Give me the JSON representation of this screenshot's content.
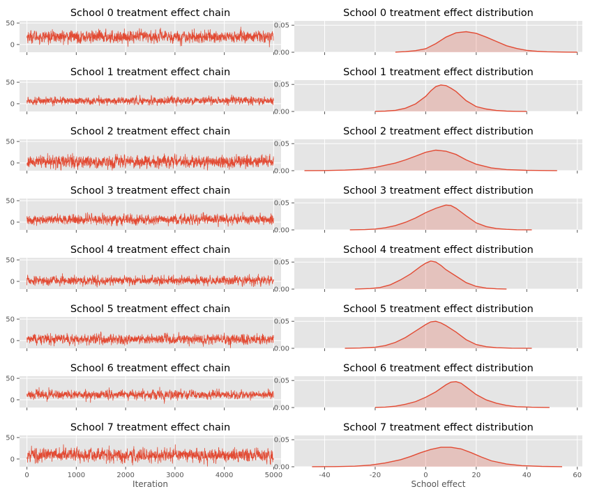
{
  "colors": {
    "accent": "#e24a33",
    "axes_bg": "#e5e5e5",
    "grid": "#ffffff",
    "tick": "#555555"
  },
  "chart_data": [
    {
      "type": "line",
      "layout_role": "chain",
      "title": "School 0 treatment effect chain",
      "xlabel": "",
      "ylabel": "",
      "xlim": [
        -150,
        5150
      ],
      "ylim": [
        -18,
        55
      ],
      "xticks": [
        0,
        1000,
        2000,
        3000,
        4000,
        5000
      ],
      "yticks": [
        0,
        50
      ],
      "grid": true,
      "trace": {
        "n": 5000,
        "mean": 18,
        "sd": 10
      }
    },
    {
      "type": "area",
      "layout_role": "density",
      "title": "School 0 treatment effect distribution",
      "xlabel": "",
      "ylabel": "",
      "xlim": [
        -52,
        62
      ],
      "ylim": [
        0,
        0.058
      ],
      "xticks": [
        -40,
        -20,
        0,
        20,
        40,
        60
      ],
      "yticks": [
        0,
        0.05
      ],
      "ytick_labels": [
        "0.00",
        "0.05"
      ],
      "grid": true,
      "x": [
        -12,
        -8,
        -4,
        0,
        4,
        8,
        12,
        16,
        20,
        24,
        28,
        32,
        36,
        40,
        44,
        48,
        52,
        56,
        60
      ],
      "y": [
        0.0003,
        0.0012,
        0.003,
        0.0065,
        0.016,
        0.028,
        0.036,
        0.038,
        0.035,
        0.028,
        0.02,
        0.012,
        0.007,
        0.0035,
        0.0018,
        0.0009,
        0.0005,
        0.0002,
        0.0001
      ]
    },
    {
      "type": "line",
      "layout_role": "chain",
      "title": "School 1 treatment effect chain",
      "xlabel": "",
      "ylabel": "",
      "xlim": [
        -150,
        5150
      ],
      "ylim": [
        -18,
        55
      ],
      "xticks": [
        0,
        1000,
        2000,
        3000,
        4000,
        5000
      ],
      "yticks": [
        0,
        50
      ],
      "grid": true,
      "trace": {
        "n": 5000,
        "mean": 7,
        "sd": 6
      }
    },
    {
      "type": "area",
      "layout_role": "density",
      "title": "School 1 treatment effect distribution",
      "xlabel": "",
      "ylabel": "",
      "xlim": [
        -52,
        62
      ],
      "ylim": [
        0,
        0.058
      ],
      "xticks": [
        -40,
        -20,
        0,
        20,
        40,
        60
      ],
      "yticks": [
        0,
        0.05
      ],
      "ytick_labels": [
        "0.00",
        "0.05"
      ],
      "grid": true,
      "x": [
        -20,
        -16,
        -12,
        -8,
        -4,
        0,
        2,
        4,
        6,
        8,
        10,
        12,
        16,
        20,
        24,
        28,
        32,
        36,
        40
      ],
      "y": [
        0.0002,
        0.0006,
        0.002,
        0.006,
        0.014,
        0.028,
        0.038,
        0.046,
        0.049,
        0.048,
        0.043,
        0.037,
        0.02,
        0.009,
        0.0045,
        0.0018,
        0.0006,
        0.0002,
        0.0001
      ]
    },
    {
      "type": "line",
      "layout_role": "chain",
      "title": "School 2 treatment effect chain",
      "xlabel": "",
      "ylabel": "",
      "xlim": [
        -150,
        5150
      ],
      "ylim": [
        -18,
        55
      ],
      "xticks": [
        0,
        1000,
        2000,
        3000,
        4000,
        5000
      ],
      "yticks": [
        0,
        50
      ],
      "grid": true,
      "trace": {
        "n": 5000,
        "mean": 3,
        "sd": 10
      }
    },
    {
      "type": "area",
      "layout_role": "density",
      "title": "School 2 treatment effect distribution",
      "xlabel": "",
      "ylabel": "",
      "xlim": [
        -52,
        62
      ],
      "ylim": [
        0,
        0.058
      ],
      "xticks": [
        -40,
        -20,
        0,
        20,
        40,
        60
      ],
      "yticks": [
        0,
        0.05
      ],
      "ytick_labels": [
        "0.00",
        "0.05"
      ],
      "grid": true,
      "x": [
        -48,
        -40,
        -32,
        -26,
        -20,
        -16,
        -12,
        -8,
        -4,
        0,
        4,
        8,
        12,
        16,
        20,
        26,
        32,
        40,
        48,
        52
      ],
      "y": [
        0.0001,
        0.0003,
        0.001,
        0.0025,
        0.006,
        0.01,
        0.014,
        0.02,
        0.027,
        0.034,
        0.038,
        0.036,
        0.03,
        0.02,
        0.012,
        0.005,
        0.002,
        0.0006,
        0.0002,
        0.0001
      ]
    },
    {
      "type": "line",
      "layout_role": "chain",
      "title": "School 3 treatment effect chain",
      "xlabel": "",
      "ylabel": "",
      "xlim": [
        -150,
        5150
      ],
      "ylim": [
        -18,
        55
      ],
      "xticks": [
        0,
        1000,
        2000,
        3000,
        4000,
        5000
      ],
      "yticks": [
        0,
        50
      ],
      "grid": true,
      "trace": {
        "n": 5000,
        "mean": 6,
        "sd": 8
      }
    },
    {
      "type": "area",
      "layout_role": "density",
      "title": "School 3 treatment effect distribution",
      "xlabel": "",
      "ylabel": "",
      "xlim": [
        -52,
        62
      ],
      "ylim": [
        0,
        0.058
      ],
      "xticks": [
        -40,
        -20,
        0,
        20,
        40,
        60
      ],
      "yticks": [
        0,
        0.05
      ],
      "ytick_labels": [
        "0.00",
        "0.05"
      ],
      "grid": true,
      "x": [
        -30,
        -24,
        -20,
        -16,
        -12,
        -8,
        -4,
        0,
        4,
        8,
        10,
        12,
        16,
        20,
        24,
        28,
        32,
        36,
        42
      ],
      "y": [
        0.0001,
        0.0005,
        0.0015,
        0.004,
        0.008,
        0.014,
        0.022,
        0.032,
        0.04,
        0.046,
        0.045,
        0.04,
        0.026,
        0.013,
        0.006,
        0.0025,
        0.001,
        0.0003,
        0.0001
      ]
    },
    {
      "type": "line",
      "layout_role": "chain",
      "title": "School 4 treatment effect chain",
      "xlabel": "",
      "ylabel": "",
      "xlim": [
        -150,
        5150
      ],
      "ylim": [
        -18,
        55
      ],
      "xticks": [
        0,
        1000,
        2000,
        3000,
        4000,
        5000
      ],
      "yticks": [
        0,
        50
      ],
      "grid": true,
      "trace": {
        "n": 5000,
        "mean": 2,
        "sd": 7
      }
    },
    {
      "type": "area",
      "layout_role": "density",
      "title": "School 4 treatment effect distribution",
      "xlabel": "",
      "ylabel": "",
      "xlim": [
        -52,
        62
      ],
      "ylim": [
        0,
        0.058
      ],
      "xticks": [
        -40,
        -20,
        0,
        20,
        40,
        60
      ],
      "yticks": [
        0,
        0.05
      ],
      "ytick_labels": [
        "0.00",
        "0.05"
      ],
      "grid": true,
      "x": [
        -28,
        -22,
        -18,
        -14,
        -10,
        -6,
        -2,
        0,
        2,
        4,
        6,
        8,
        12,
        16,
        20,
        24,
        28,
        32
      ],
      "y": [
        0.0001,
        0.001,
        0.003,
        0.008,
        0.017,
        0.028,
        0.042,
        0.048,
        0.052,
        0.05,
        0.044,
        0.036,
        0.024,
        0.012,
        0.005,
        0.0018,
        0.0005,
        0.0001
      ]
    },
    {
      "type": "line",
      "layout_role": "chain",
      "title": "School 5 treatment effect chain",
      "xlabel": "",
      "ylabel": "",
      "xlim": [
        -150,
        5150
      ],
      "ylim": [
        -18,
        55
      ],
      "xticks": [
        0,
        1000,
        2000,
        3000,
        4000,
        5000
      ],
      "yticks": [
        0,
        50
      ],
      "grid": true,
      "trace": {
        "n": 5000,
        "mean": 3,
        "sd": 8
      }
    },
    {
      "type": "area",
      "layout_role": "density",
      "title": "School 5 treatment effect distribution",
      "xlabel": "",
      "ylabel": "",
      "xlim": [
        -52,
        62
      ],
      "ylim": [
        0,
        0.058
      ],
      "xticks": [
        -40,
        -20,
        0,
        20,
        40,
        60
      ],
      "yticks": [
        0,
        0.05
      ],
      "ytick_labels": [
        "0.00",
        "0.05"
      ],
      "grid": true,
      "x": [
        -32,
        -26,
        -20,
        -16,
        -12,
        -8,
        -4,
        0,
        2,
        4,
        6,
        8,
        12,
        16,
        20,
        24,
        28,
        34,
        42
      ],
      "y": [
        0.0001,
        0.0005,
        0.002,
        0.005,
        0.011,
        0.02,
        0.032,
        0.044,
        0.049,
        0.05,
        0.047,
        0.042,
        0.03,
        0.016,
        0.007,
        0.003,
        0.0011,
        0.0003,
        0.0001
      ]
    },
    {
      "type": "line",
      "layout_role": "chain",
      "title": "School 6 treatment effect chain",
      "xlabel": "",
      "ylabel": "",
      "xlim": [
        -150,
        5150
      ],
      "ylim": [
        -18,
        55
      ],
      "xticks": [
        0,
        1000,
        2000,
        3000,
        4000,
        5000
      ],
      "yticks": [
        0,
        50
      ],
      "grid": true,
      "trace": {
        "n": 5000,
        "mean": 12,
        "sd": 7
      }
    },
    {
      "type": "area",
      "layout_role": "density",
      "title": "School 6 treatment effect distribution",
      "xlabel": "",
      "ylabel": "",
      "xlim": [
        -52,
        62
      ],
      "ylim": [
        0,
        0.058
      ],
      "xticks": [
        -40,
        -20,
        0,
        20,
        40,
        60
      ],
      "yticks": [
        0,
        0.05
      ],
      "ytick_labels": [
        "0.00",
        "0.05"
      ],
      "grid": true,
      "x": [
        -20,
        -16,
        -12,
        -8,
        -4,
        0,
        4,
        8,
        10,
        12,
        14,
        16,
        20,
        24,
        28,
        32,
        36,
        42,
        49
      ],
      "y": [
        0.0002,
        0.0008,
        0.0025,
        0.006,
        0.011,
        0.019,
        0.029,
        0.042,
        0.047,
        0.048,
        0.045,
        0.038,
        0.024,
        0.014,
        0.008,
        0.004,
        0.0015,
        0.0005,
        0.0001
      ]
    },
    {
      "type": "line",
      "layout_role": "chain",
      "title": "School 7 treatment effect chain",
      "xlabel": "Iteration",
      "ylabel": "",
      "xlim": [
        -150,
        5150
      ],
      "ylim": [
        -18,
        55
      ],
      "xticks": [
        0,
        1000,
        2000,
        3000,
        4000,
        5000
      ],
      "yticks": [
        0,
        50
      ],
      "grid": true,
      "trace": {
        "n": 5000,
        "mean": 9,
        "sd": 11
      }
    },
    {
      "type": "area",
      "layout_role": "density",
      "title": "School 7 treatment effect distribution",
      "xlabel": "School effect",
      "ylabel": "",
      "xlim": [
        -52,
        62
      ],
      "ylim": [
        0,
        0.058
      ],
      "xticks": [
        -40,
        -20,
        0,
        20,
        40,
        60
      ],
      "yticks": [
        0,
        0.05
      ],
      "ytick_labels": [
        "0.00",
        "0.05"
      ],
      "grid": true,
      "x": [
        -45,
        -36,
        -28,
        -22,
        -16,
        -10,
        -6,
        -2,
        2,
        6,
        10,
        14,
        18,
        22,
        26,
        32,
        38,
        46,
        54
      ],
      "y": [
        0.0001,
        0.0003,
        0.001,
        0.003,
        0.007,
        0.013,
        0.019,
        0.026,
        0.032,
        0.036,
        0.036,
        0.033,
        0.026,
        0.018,
        0.011,
        0.005,
        0.002,
        0.0006,
        0.0001
      ]
    }
  ]
}
